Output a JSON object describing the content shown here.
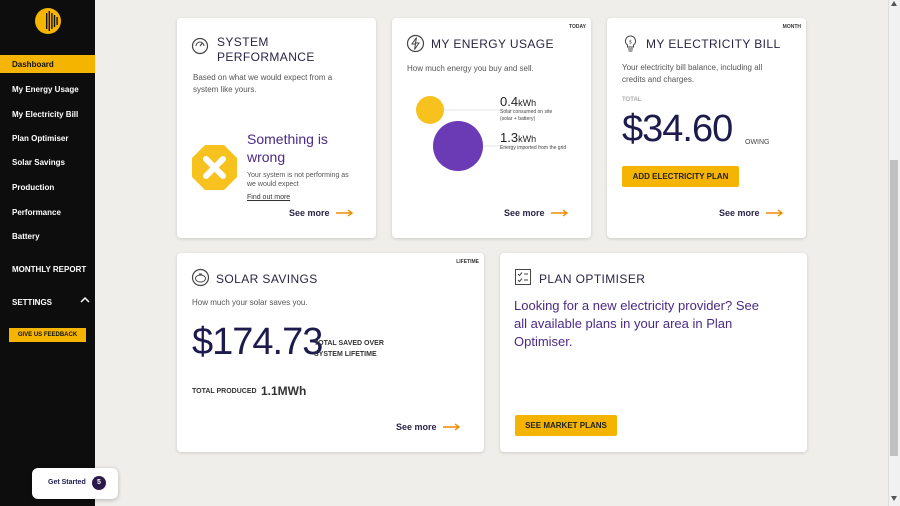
{
  "sidebar": {
    "items": [
      {
        "label": "Dashboard",
        "active": true
      },
      {
        "label": "My Energy Usage"
      },
      {
        "label": "My Electricity Bill"
      },
      {
        "label": "Plan Optimiser"
      },
      {
        "label": "Solar Savings"
      },
      {
        "label": "Production"
      },
      {
        "label": "Performance"
      },
      {
        "label": "Battery"
      }
    ],
    "monthly_report": "MONTHLY REPORT",
    "settings": "SETTINGS",
    "feedback_button": "GIVE US FEEDBACK"
  },
  "get_started": {
    "label": "Get Started",
    "count": "5"
  },
  "cards": {
    "system_performance": {
      "title_line1": "SYSTEM",
      "title_line2": "PERFORMANCE",
      "desc_line1": "Based on what we would expect from a",
      "desc_line2": "system like yours.",
      "status_line1": "Something is",
      "status_line2": "wrong",
      "detail_line1": "Your system is not performing as",
      "detail_line2": "we would expect",
      "link": "Find out more",
      "see_more": "See more"
    },
    "energy_usage": {
      "title": "MY ENERGY USAGE",
      "tag": "TODAY",
      "desc": "How much energy you buy and sell.",
      "solar_value": "0.4",
      "solar_unit": "kWh",
      "solar_label_line1": "Solar consumed on site",
      "solar_label_line2": "(solar + battery)",
      "grid_value": "1.3",
      "grid_unit": "kWh",
      "grid_label": "Energy imported from the grid",
      "see_more": "See more",
      "colors": {
        "solar": "#f7c21e",
        "grid": "#6b3ab5"
      }
    },
    "electricity_bill": {
      "title": "MY ELECTRICITY BILL",
      "tag": "MONTH",
      "desc_line1": "Your electricity bill balance, including all",
      "desc_line2": "credits and charges.",
      "total_label": "TOTAL",
      "amount": "$34.60",
      "status": "OWING",
      "button": "ADD ELECTRICITY PLAN",
      "see_more": "See more"
    },
    "solar_savings": {
      "title": "SOLAR SAVINGS",
      "tag": "LIFETIME",
      "desc": "How much your solar saves you.",
      "amount": "$174.73",
      "amount_label_line1": "TOTAL SAVED OVER",
      "amount_label_line2": "SYSTEM LIFETIME",
      "produced_label": "TOTAL PRODUCED",
      "produced_value": "1.1MWh",
      "see_more": "See more"
    },
    "plan_optimiser": {
      "title": "PLAN OPTIMISER",
      "text_line1": "Looking for a new electricity provider? See",
      "text_line2": "all available plans in your area in Plan",
      "text_line3": "Optimiser.",
      "button": "SEE MARKET PLANS"
    }
  },
  "colors": {
    "accent": "#f5b400",
    "sidebar": "#0d0d0d",
    "arrow": "#f08a00",
    "heading": "#2a2545",
    "purple_text": "#4a2a86"
  }
}
